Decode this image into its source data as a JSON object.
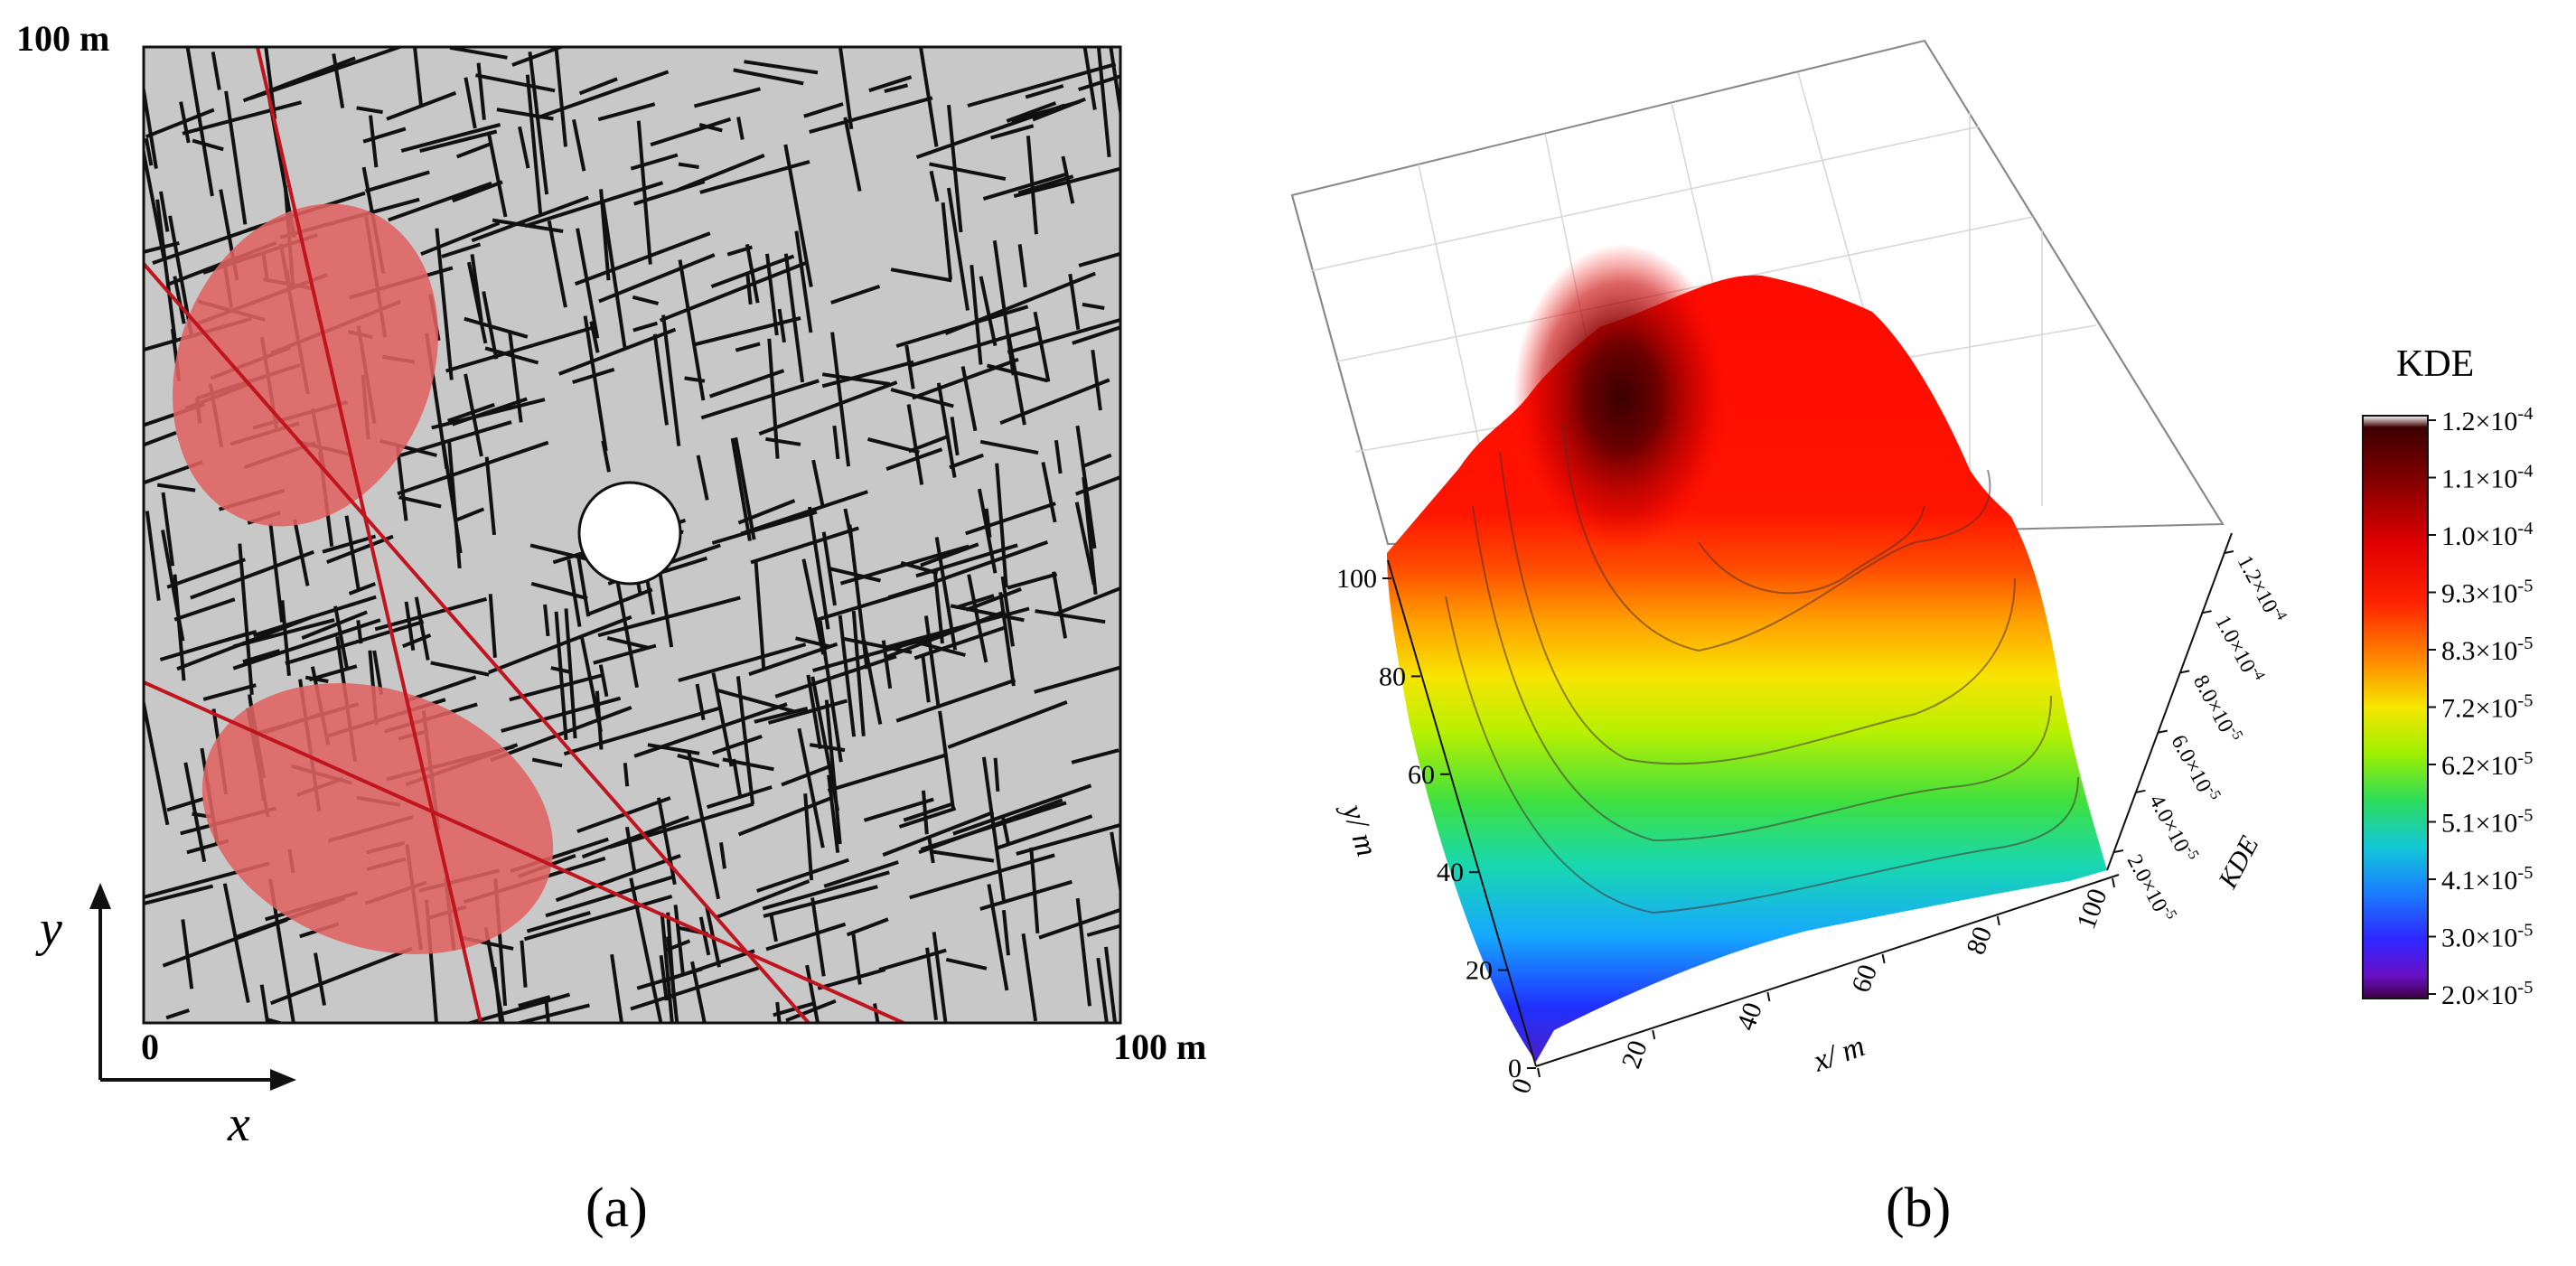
{
  "panel_a": {
    "label_top_left": "100 m",
    "label_origin": "0",
    "label_bottom_right": "100 m",
    "axis_x": "x",
    "axis_y": "y",
    "caption": "(a)",
    "colors": {
      "background": "#c8c8c8",
      "fracture": "#111111",
      "fault": "#c0141e",
      "zone": "#e06262"
    }
  },
  "panel_b": {
    "caption": "(b)",
    "colorbar": {
      "title": "KDE",
      "base": "×10",
      "ticks": [
        {
          "mant": "1.2",
          "exp": "-4"
        },
        {
          "mant": "1.1",
          "exp": "-4"
        },
        {
          "mant": "1.0",
          "exp": "-4"
        },
        {
          "mant": "9.3",
          "exp": "-5"
        },
        {
          "mant": "8.3",
          "exp": "-5"
        },
        {
          "mant": "7.2",
          "exp": "-5"
        },
        {
          "mant": "6.2",
          "exp": "-5"
        },
        {
          "mant": "5.1",
          "exp": "-5"
        },
        {
          "mant": "4.1",
          "exp": "-5"
        },
        {
          "mant": "3.0",
          "exp": "-5"
        },
        {
          "mant": "2.0",
          "exp": "-5"
        }
      ],
      "colors": [
        "#ffffff",
        "#3d0000",
        "#8a0000",
        "#d40000",
        "#ff1a00",
        "#ff5a00",
        "#ffa000",
        "#f7e400",
        "#a8f000",
        "#3cdc4c",
        "#14c8c8",
        "#1a8cff",
        "#2828ff",
        "#6a1fd2",
        "#3c0040"
      ]
    },
    "z_axis": {
      "label": "KDE",
      "ticks": [
        {
          "mant": "1.2",
          "exp": "-4"
        },
        {
          "mant": "1.0",
          "exp": "-4"
        },
        {
          "mant": "8.0",
          "exp": "-5"
        },
        {
          "mant": "6.0",
          "exp": "-5"
        },
        {
          "mant": "4.0",
          "exp": "-5"
        },
        {
          "mant": "2.0",
          "exp": "-5"
        }
      ]
    },
    "y_axis": {
      "label": "y/ m",
      "ticks": [
        "100",
        "80",
        "60",
        "40",
        "20",
        "0"
      ]
    },
    "x_axis": {
      "label": "x/ m",
      "ticks": [
        "0",
        "20",
        "40",
        "60",
        "80",
        "100"
      ]
    }
  }
}
